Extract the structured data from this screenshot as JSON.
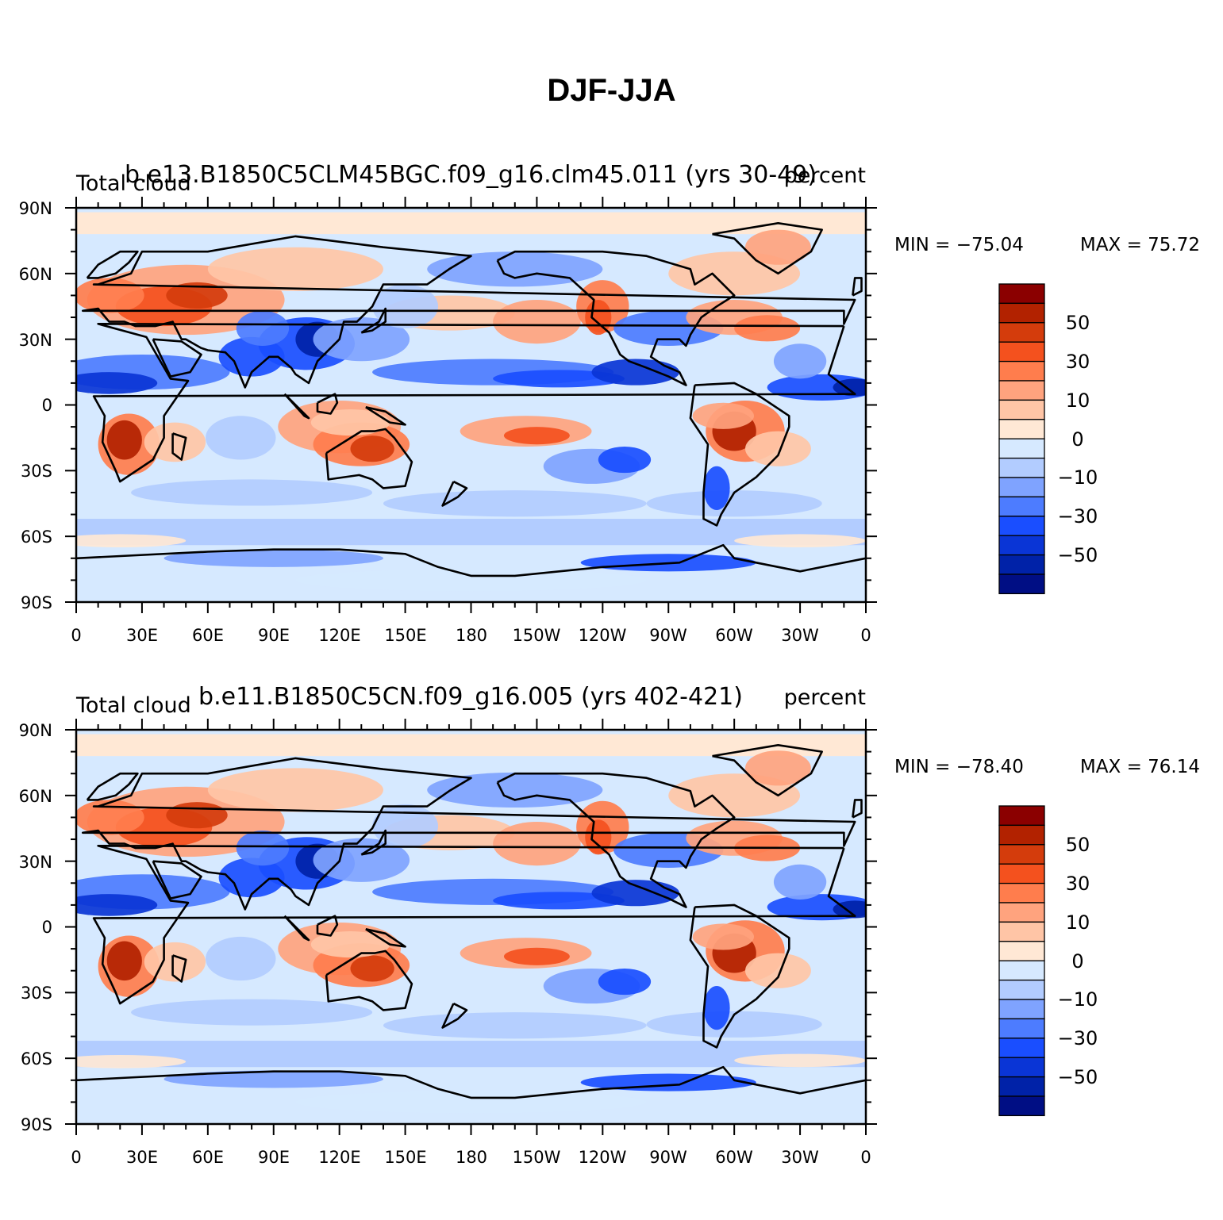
{
  "title": "DJF-JJA",
  "panels": [
    {
      "case_title": "b.e13.B1850C5CLM45BGC.f09_g16.clm45.011 (yrs 30-49)",
      "variable": "Total cloud",
      "units": "percent",
      "min_label": "MIN = −75.04",
      "max_label": "MAX =  75.72"
    },
    {
      "case_title": "b.e11.B1850C5CN.f09_g16.005 (yrs 402-421)",
      "variable": "Total cloud",
      "units": "percent",
      "min_label": "MIN = −78.40",
      "max_label": "MAX =  76.14"
    }
  ],
  "lat_ticks": [
    "90N",
    "60N",
    "30N",
    "0",
    "30S",
    "60S",
    "90S"
  ],
  "lon_ticks": [
    "0",
    "30E",
    "60E",
    "90E",
    "120E",
    "150E",
    "180",
    "150W",
    "120W",
    "90W",
    "60W",
    "30W",
    "0"
  ],
  "colorbar": {
    "labels": [
      "50",
      "30",
      "10",
      "0",
      "−10",
      "−30",
      "−50"
    ],
    "colors": [
      "#8b0000",
      "#b22200",
      "#d43c0c",
      "#f4511e",
      "#ff7d4d",
      "#ffa37e",
      "#ffc5a6",
      "#ffe8d5",
      "#d6e9ff",
      "#b2ccff",
      "#7fa3ff",
      "#4d7cff",
      "#1a4eff",
      "#0a35d6",
      "#0022a8",
      "#000e84"
    ]
  },
  "chart_data": [
    {
      "type": "heatmap",
      "title": "b.e13.B1850C5CLM45BGC.f09_g16.clm45.011 (yrs 30-49)",
      "subtitle_left": "Total cloud",
      "subtitle_right": "percent",
      "x_range": [
        0,
        360
      ],
      "y_range": [
        -90,
        90
      ],
      "value_range": [
        -75.04,
        75.72
      ],
      "contour_levels": [
        -70,
        -60,
        -50,
        -40,
        -30,
        -20,
        -10,
        -5,
        0,
        5,
        10,
        20,
        30,
        40,
        50,
        60,
        70
      ]
    },
    {
      "type": "heatmap",
      "title": "b.e11.B1850C5CN.f09_g16.005 (yrs 402-421)",
      "subtitle_left": "Total cloud",
      "subtitle_right": "percent",
      "x_range": [
        0,
        360
      ],
      "y_range": [
        -90,
        90
      ],
      "value_range": [
        -78.4,
        76.14
      ],
      "contour_levels": [
        -70,
        -60,
        -50,
        -40,
        -30,
        -20,
        -10,
        -5,
        0,
        5,
        10,
        20,
        30,
        40,
        50,
        60,
        70
      ]
    }
  ]
}
